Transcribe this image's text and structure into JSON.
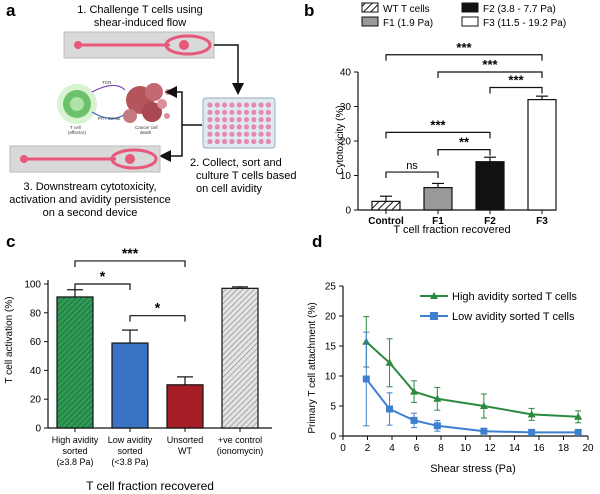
{
  "colors": {
    "device_fill": "#f2b8c8",
    "device_channel": "#e8587a",
    "panel_b_f1": "#999999",
    "panel_b_f2": "#111111",
    "panel_c_high": "#2e9a55",
    "panel_c_low": "#3a72c4",
    "panel_c_unsorted": "#a51e26",
    "panel_c_ctrl": "#cccccc",
    "panel_d_high": "#2b8a3e",
    "panel_d_low": "#3f7fd0",
    "arrow": "#111111"
  },
  "panel_a": {
    "label": "a",
    "step1": [
      "1. Challenge T cells using",
      "shear-induced flow"
    ],
    "step2": [
      "2. Collect, sort and",
      "culture T cells based",
      "on cell avidity"
    ],
    "step3": [
      "3. Downstream cytotoxicity,",
      "activation and avidity persistence",
      "on a second device"
    ],
    "tcell_label": [
      "T cell",
      "(effector)"
    ],
    "cancer_label": [
      "Cancer cell",
      "death"
    ],
    "tcr_label": "TCR",
    "prf_label": "Prf / GzmB",
    "icons": [
      "microfluidic-device-icon",
      "well-plate-icon",
      "t-cell-killing-icon"
    ]
  },
  "chart_data": [
    {
      "panel": "b",
      "type": "bar",
      "title": "",
      "xlabel": "T cell fraction recovered",
      "ylabel": "Cytotoxicity (%)",
      "ylim": [
        0,
        40
      ],
      "yticks": [
        "0",
        "10",
        "20",
        "30",
        "40"
      ],
      "categories": [
        "Control",
        "F1",
        "F2",
        "F3"
      ],
      "values": [
        2.5,
        6.5,
        14,
        32
      ],
      "errors": [
        1.5,
        1.2,
        1.3,
        1.0
      ],
      "legend": [
        {
          "label": "WT T cells",
          "style": "hatch"
        },
        {
          "label": "F1 (1.9 Pa)",
          "style": "gray"
        },
        {
          "label": "F2 (3.8 - 7.7 Pa)",
          "style": "black"
        },
        {
          "label": "F3 (11.5 - 19.2 Pa)",
          "style": "white"
        }
      ],
      "legend_position": "top",
      "significance": [
        {
          "from": 0,
          "to": 1,
          "label": "ns",
          "y": 11
        },
        {
          "from": 1,
          "to": 2,
          "label": "**",
          "y": 17.5
        },
        {
          "from": 0,
          "to": 2,
          "label": "***",
          "y": 22.5
        },
        {
          "from": 2,
          "to": 3,
          "label": "***",
          "y": 35.5
        },
        {
          "from": 1,
          "to": 3,
          "label": "***",
          "y": 40
        },
        {
          "from": 0,
          "to": 3,
          "label": "***",
          "y": 45
        }
      ]
    },
    {
      "panel": "c",
      "type": "bar",
      "title": "",
      "xlabel": "T cell fraction recovered",
      "ylabel": "T cell activation (%)",
      "ylim": [
        0,
        100
      ],
      "yticks": [
        "0",
        "20",
        "40",
        "60",
        "80",
        "100"
      ],
      "categories": [
        [
          "High avidity",
          "sorted",
          "(≥3.8 Pa)"
        ],
        [
          "Low avidity",
          "sorted",
          "(<3.8 Pa)"
        ],
        [
          "Unsorted",
          "WT"
        ],
        [
          "+ve control",
          "(ionomycin)"
        ]
      ],
      "values": [
        91,
        59,
        30,
        97
      ],
      "errors": [
        5,
        9,
        5.5,
        1
      ],
      "significance": [
        {
          "from": 0,
          "to": 1,
          "label": "*",
          "y": 100
        },
        {
          "from": 1,
          "to": 2,
          "label": "*",
          "y": 78
        },
        {
          "from": 0,
          "to": 2,
          "label": "***",
          "y": 116
        }
      ]
    },
    {
      "panel": "d",
      "type": "line",
      "title": "",
      "xlabel": "Shear stress (Pa)",
      "ylabel": "Primary T cell attachment (%)",
      "xlim": [
        0,
        20
      ],
      "ylim": [
        0,
        25
      ],
      "xticks": [
        "0",
        "2",
        "4",
        "6",
        "8",
        "10",
        "12",
        "14",
        "16",
        "18",
        "20"
      ],
      "yticks": [
        "0",
        "5",
        "10",
        "15",
        "20",
        "25"
      ],
      "legend_position": "top-right",
      "series": [
        {
          "name": "High avidity sorted T cells",
          "x": [
            1.9,
            3.8,
            5.8,
            7.7,
            11.5,
            15.4,
            19.2
          ],
          "y": [
            15.7,
            12.2,
            7.4,
            6.2,
            5.0,
            3.6,
            3.2
          ],
          "errors": [
            4.2,
            4.0,
            1.8,
            1.9,
            2.0,
            1.0,
            1.0
          ]
        },
        {
          "name": "Low avidity sorted T cells",
          "x": [
            1.9,
            3.8,
            5.8,
            7.7,
            11.5,
            15.4,
            19.2
          ],
          "y": [
            9.5,
            4.5,
            2.6,
            1.7,
            0.8,
            0.6,
            0.6
          ],
          "errors": [
            7.8,
            2.7,
            1.2,
            0.9,
            0.4,
            0.3,
            0.3
          ]
        }
      ]
    }
  ],
  "panel_labels": {
    "b": "b",
    "c": "c",
    "d": "d"
  }
}
